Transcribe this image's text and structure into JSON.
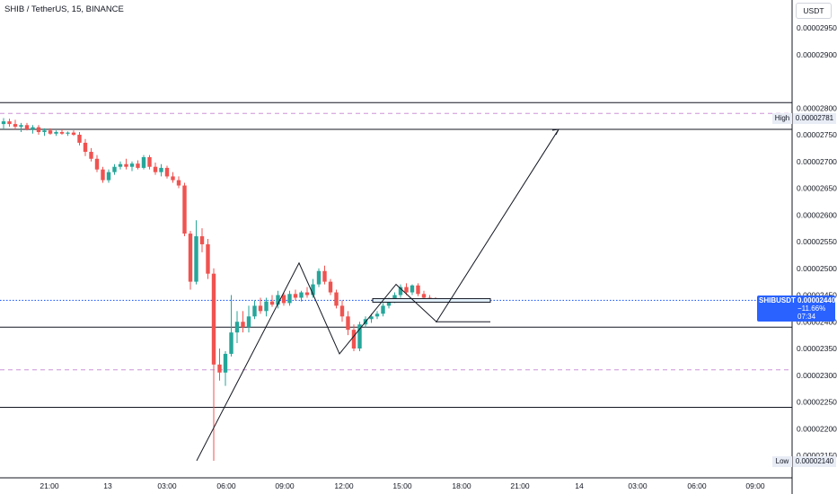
{
  "header": {
    "title": "SHIB / TetherUS, 15, BINANCE",
    "currency": "USDT"
  },
  "price_tag": {
    "symbol": "SHIBUSDT",
    "price": "0.00002440",
    "change": "−11.66%",
    "timer": "07:34"
  },
  "high_tag": {
    "label": "High",
    "value": "0.00002781"
  },
  "low_tag": {
    "label": "Low",
    "value": "0.00002140"
  },
  "colors": {
    "up": "#26a69a",
    "down": "#ef5350",
    "last_price_line": "#2962ff",
    "dashed_level": "#ce93d8",
    "axis_text": "#131722"
  },
  "chart_data": {
    "type": "candlestick",
    "symbol": "SHIB / TetherUS",
    "interval": "15",
    "exchange": "BINANCE",
    "ylim": [
      2.13e-05,
      2.98e-05
    ],
    "y_ticks": [
      "0.00002950",
      "0.00002900",
      "0.00002800",
      "0.00002750",
      "0.00002700",
      "0.00002650",
      "0.00002600",
      "0.00002550",
      "0.00002500",
      "0.00002450",
      "0.00002400",
      "0.00002350",
      "0.00002300",
      "0.00002250",
      "0.00002200",
      "0.00002150"
    ],
    "x_ticks": [
      "21:00",
      "13",
      "03:00",
      "06:00",
      "09:00",
      "12:00",
      "15:00",
      "18:00",
      "21:00",
      "14",
      "03:00",
      "06:00",
      "09:00"
    ],
    "last_price": 2.44e-05,
    "high": 2.781e-05,
    "low": 2.14e-05,
    "solid_levels": [
      2.81e-05,
      2.76e-05,
      2.39e-05,
      2.24e-05
    ],
    "dashed_levels": [
      2.79e-05,
      2.31e-05
    ],
    "zone": [
      2.44e-05,
      2.44e-05
    ],
    "projection_path": [
      2.14e-05,
      2.51e-05,
      2.34e-05,
      2.47e-05,
      2.4e-05,
      2.76e-05
    ],
    "candles": [
      {
        "o": 2.77e-05,
        "h": 2.781e-05,
        "l": 2.76e-05,
        "c": 2.775e-05
      },
      {
        "o": 2.775e-05,
        "h": 2.78e-05,
        "l": 2.765e-05,
        "c": 2.77e-05
      },
      {
        "o": 2.77e-05,
        "h": 2.778e-05,
        "l": 2.76e-05,
        "c": 2.765e-05
      },
      {
        "o": 2.765e-05,
        "h": 2.772e-05,
        "l": 2.755e-05,
        "c": 2.768e-05
      },
      {
        "o": 2.768e-05,
        "h": 2.772e-05,
        "l": 2.758e-05,
        "c": 2.76e-05
      },
      {
        "o": 2.76e-05,
        "h": 2.768e-05,
        "l": 2.752e-05,
        "c": 2.764e-05
      },
      {
        "o": 2.764e-05,
        "h": 2.768e-05,
        "l": 2.75e-05,
        "c": 2.755e-05
      },
      {
        "o": 2.755e-05,
        "h": 2.762e-05,
        "l": 2.748e-05,
        "c": 2.758e-05
      },
      {
        "o": 2.758e-05,
        "h": 2.762e-05,
        "l": 2.75e-05,
        "c": 2.752e-05
      },
      {
        "o": 2.752e-05,
        "h": 2.758e-05,
        "l": 2.748e-05,
        "c": 2.755e-05
      },
      {
        "o": 2.755e-05,
        "h": 2.76e-05,
        "l": 2.75e-05,
        "c": 2.752e-05
      },
      {
        "o": 2.752e-05,
        "h": 2.756e-05,
        "l": 2.748e-05,
        "c": 2.754e-05
      },
      {
        "o": 2.754e-05,
        "h": 2.758e-05,
        "l": 2.748e-05,
        "c": 2.75e-05
      },
      {
        "o": 2.75e-05,
        "h": 2.755e-05,
        "l": 2.73e-05,
        "c": 2.735e-05
      },
      {
        "o": 2.735e-05,
        "h": 2.742e-05,
        "l": 2.71e-05,
        "c": 2.718e-05
      },
      {
        "o": 2.718e-05,
        "h": 2.725e-05,
        "l": 2.7e-05,
        "c": 2.705e-05
      },
      {
        "o": 2.705e-05,
        "h": 2.712e-05,
        "l": 2.68e-05,
        "c": 2.685e-05
      },
      {
        "o": 2.685e-05,
        "h": 2.69e-05,
        "l": 2.66e-05,
        "c": 2.665e-05
      },
      {
        "o": 2.665e-05,
        "h": 2.685e-05,
        "l": 2.66e-05,
        "c": 2.68e-05
      },
      {
        "o": 2.68e-05,
        "h": 2.695e-05,
        "l": 2.675e-05,
        "c": 2.69e-05
      },
      {
        "o": 2.69e-05,
        "h": 2.7e-05,
        "l": 2.685e-05,
        "c": 2.695e-05
      },
      {
        "o": 2.695e-05,
        "h": 2.705e-05,
        "l": 2.685e-05,
        "c": 2.69e-05
      },
      {
        "o": 2.69e-05,
        "h": 2.7e-05,
        "l": 2.682e-05,
        "c": 2.696e-05
      },
      {
        "o": 2.696e-05,
        "h": 2.702e-05,
        "l": 2.685e-05,
        "c": 2.688e-05
      },
      {
        "o": 2.688e-05,
        "h": 2.712e-05,
        "l": 2.685e-05,
        "c": 2.708e-05
      },
      {
        "o": 2.708e-05,
        "h": 2.712e-05,
        "l": 2.685e-05,
        "c": 2.69e-05
      },
      {
        "o": 2.69e-05,
        "h": 2.698e-05,
        "l": 2.675e-05,
        "c": 2.68e-05
      },
      {
        "o": 2.68e-05,
        "h": 2.695e-05,
        "l": 2.672e-05,
        "c": 2.688e-05
      },
      {
        "o": 2.688e-05,
        "h": 2.692e-05,
        "l": 2.668e-05,
        "c": 2.672e-05
      },
      {
        "o": 2.672e-05,
        "h": 2.68e-05,
        "l": 2.66e-05,
        "c": 2.665e-05
      },
      {
        "o": 2.665e-05,
        "h": 2.672e-05,
        "l": 2.65e-05,
        "c": 2.655e-05
      },
      {
        "o": 2.655e-05,
        "h": 2.66e-05,
        "l": 2.56e-05,
        "c": 2.565e-05
      },
      {
        "o": 2.565e-05,
        "h": 2.57e-05,
        "l": 2.46e-05,
        "c": 2.475e-05
      },
      {
        "o": 2.475e-05,
        "h": 2.59e-05,
        "l": 2.47e-05,
        "c": 2.56e-05
      },
      {
        "o": 2.56e-05,
        "h": 2.575e-05,
        "l": 2.53e-05,
        "c": 2.545e-05
      },
      {
        "o": 2.545e-05,
        "h": 2.555e-05,
        "l": 2.48e-05,
        "c": 2.49e-05
      },
      {
        "o": 2.49e-05,
        "h": 2.5e-05,
        "l": 2.14e-05,
        "c": 2.32e-05
      },
      {
        "o": 2.32e-05,
        "h": 2.35e-05,
        "l": 2.29e-05,
        "c": 2.305e-05
      },
      {
        "o": 2.305e-05,
        "h": 2.345e-05,
        "l": 2.28e-05,
        "c": 2.34e-05
      },
      {
        "o": 2.34e-05,
        "h": 2.45e-05,
        "l": 2.335e-05,
        "c": 2.38e-05
      },
      {
        "o": 2.38e-05,
        "h": 2.42e-05,
        "l": 2.36e-05,
        "c": 2.4e-05
      },
      {
        "o": 2.4e-05,
        "h": 2.42e-05,
        "l": 2.38e-05,
        "c": 2.39e-05
      },
      {
        "o": 2.39e-05,
        "h": 2.43e-05,
        "l": 2.38e-05,
        "c": 2.41e-05
      },
      {
        "o": 2.41e-05,
        "h": 2.44e-05,
        "l": 2.405e-05,
        "c": 2.43e-05
      },
      {
        "o": 2.43e-05,
        "h": 2.445e-05,
        "l": 2.415e-05,
        "c": 2.42e-05
      },
      {
        "o": 2.42e-05,
        "h": 2.445e-05,
        "l": 2.41e-05,
        "c": 2.438e-05
      },
      {
        "o": 2.438e-05,
        "h": 2.45e-05,
        "l": 2.428e-05,
        "c": 2.432e-05
      },
      {
        "o": 2.432e-05,
        "h": 2.458e-05,
        "l": 2.425e-05,
        "c": 2.45e-05
      },
      {
        "o": 2.45e-05,
        "h": 2.455e-05,
        "l": 2.43e-05,
        "c": 2.435e-05
      },
      {
        "o": 2.435e-05,
        "h": 2.458e-05,
        "l": 2.43e-05,
        "c": 2.452e-05
      },
      {
        "o": 2.452e-05,
        "h": 2.46e-05,
        "l": 2.44e-05,
        "c": 2.445e-05
      },
      {
        "o": 2.445e-05,
        "h": 2.458e-05,
        "l": 2.438e-05,
        "c": 2.455e-05
      },
      {
        "o": 2.455e-05,
        "h": 2.465e-05,
        "l": 2.445e-05,
        "c": 2.45e-05
      },
      {
        "o": 2.45e-05,
        "h": 2.48e-05,
        "l": 2.445e-05,
        "c": 2.47e-05
      },
      {
        "o": 2.47e-05,
        "h": 2.5e-05,
        "l": 2.465e-05,
        "c": 2.495e-05
      },
      {
        "o": 2.495e-05,
        "h": 2.505e-05,
        "l": 2.47e-05,
        "c": 2.475e-05
      },
      {
        "o": 2.475e-05,
        "h": 2.48e-05,
        "l": 2.45e-05,
        "c": 2.455e-05
      },
      {
        "o": 2.455e-05,
        "h": 2.46e-05,
        "l": 2.425e-05,
        "c": 2.43e-05
      },
      {
        "o": 2.43e-05,
        "h": 2.44e-05,
        "l": 2.4e-05,
        "c": 2.41e-05
      },
      {
        "o": 2.41e-05,
        "h": 2.42e-05,
        "l": 2.375e-05,
        "c": 2.385e-05
      },
      {
        "o": 2.385e-05,
        "h": 2.395e-05,
        "l": 2.345e-05,
        "c": 2.35e-05
      },
      {
        "o": 2.35e-05,
        "h": 2.4e-05,
        "l": 2.345e-05,
        "c": 2.395e-05
      },
      {
        "o": 2.395e-05,
        "h": 2.41e-05,
        "l": 2.39e-05,
        "c": 2.405e-05
      },
      {
        "o": 2.405e-05,
        "h": 2.415e-05,
        "l": 2.398e-05,
        "c": 2.41e-05
      },
      {
        "o": 2.41e-05,
        "h": 2.42e-05,
        "l": 2.405e-05,
        "c": 2.415e-05
      },
      {
        "o": 2.415e-05,
        "h": 2.435e-05,
        "l": 2.41e-05,
        "c": 2.43e-05
      },
      {
        "o": 2.43e-05,
        "h": 2.445e-05,
        "l": 2.425e-05,
        "c": 2.44e-05
      },
      {
        "o": 2.44e-05,
        "h": 2.455e-05,
        "l": 2.435e-05,
        "c": 2.45e-05
      },
      {
        "o": 2.45e-05,
        "h": 2.47e-05,
        "l": 2.445e-05,
        "c": 2.465e-05
      },
      {
        "o": 2.465e-05,
        "h": 2.472e-05,
        "l": 2.45e-05,
        "c": 2.455e-05
      },
      {
        "o": 2.455e-05,
        "h": 2.47e-05,
        "l": 2.45e-05,
        "c": 2.468e-05
      },
      {
        "o": 2.468e-05,
        "h": 2.472e-05,
        "l": 2.448e-05,
        "c": 2.452e-05
      },
      {
        "o": 2.452e-05,
        "h": 2.458e-05,
        "l": 2.44e-05,
        "c": 2.445e-05
      },
      {
        "o": 2.445e-05,
        "h": 2.45e-05,
        "l": 2.438e-05,
        "c": 2.442e-05
      },
      {
        "o": 2.442e-05,
        "h": 2.446e-05,
        "l": 2.436e-05,
        "c": 2.44e-05
      }
    ]
  }
}
